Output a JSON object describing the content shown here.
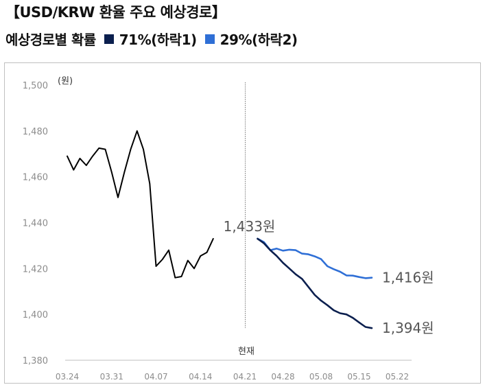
{
  "header": {
    "title": "【USD/KRW 환율 주요 예상경로】",
    "subtitle_prefix": "예상경로별 확률",
    "legend": [
      {
        "label": "71%(하락1)",
        "color": "#0b1f4e"
      },
      {
        "label": "29%(하락2)",
        "color": "#2f6fd6"
      }
    ]
  },
  "chart_data": {
    "type": "line",
    "ylabel": "(원)",
    "ylim": [
      1380,
      1500
    ],
    "yticks": [
      "1,380",
      "1,400",
      "1,420",
      "1,440",
      "1,460",
      "1,480",
      "1,500"
    ],
    "xticks": [
      "03.24",
      "03.31",
      "04.07",
      "04.14",
      "04.21",
      "04.28",
      "05.08",
      "05.15",
      "05.22"
    ],
    "now_label": "현재",
    "annotations": {
      "current": "1,433원",
      "end_decline2": "1,416원",
      "end_decline1": "1,394원"
    },
    "series": [
      {
        "color": "#000000",
        "values": [
          1469,
          1463,
          1468,
          1465,
          1469,
          1472.5,
          1472,
          1462,
          1451,
          1462,
          1472,
          1480,
          1472,
          1457,
          1421,
          1424,
          1428,
          1416,
          1416.5,
          1423.5,
          1420,
          1425.5,
          1427,
          1433
        ]
      },
      {
        "name": "71%(하락1)",
        "color": "#0b1f4e",
        "values": [
          1433,
          1431,
          1428,
          1425.5,
          1422.5,
          1420,
          1417.5,
          1415.5,
          1412,
          1408.5,
          1406,
          1404,
          1401.8,
          1400.5,
          1400,
          1398.5,
          1396.5,
          1394.5,
          1394
        ]
      },
      {
        "name": "29%(하락2)",
        "color": "#2f6fd6",
        "values": [
          1433,
          1431.5,
          1428,
          1428.7,
          1427.8,
          1428.2,
          1428,
          1426.5,
          1426.2,
          1425.3,
          1424.1,
          1421,
          1419.7,
          1418.6,
          1417,
          1416.9,
          1416.3,
          1415.8,
          1416
        ]
      }
    ]
  }
}
